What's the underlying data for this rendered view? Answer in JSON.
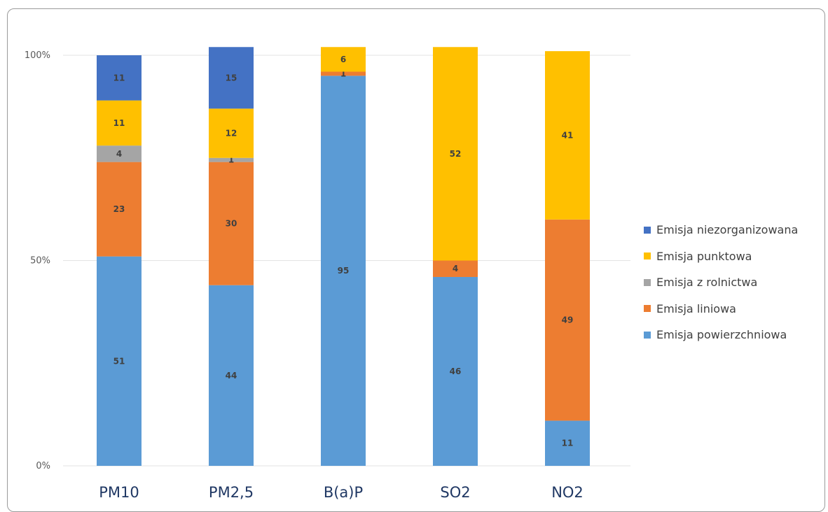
{
  "chart_data": {
    "type": "bar",
    "stacked": "percent",
    "categories": [
      "PM10",
      "PM2,5",
      "B(a)P",
      "SO2",
      "NO2"
    ],
    "y_ticks": [
      "0%",
      "50%",
      "100%"
    ],
    "ylim": [
      0,
      100
    ],
    "grid": true,
    "legend_position": "right",
    "series": [
      {
        "name": "Emisja powierzchniowa",
        "color": "#5B9BD5",
        "values": [
          51,
          44,
          95,
          46,
          11
        ],
        "labels": [
          "51",
          "44",
          "95",
          "46",
          "11"
        ]
      },
      {
        "name": "Emisja liniowa",
        "color": "#ED7D31",
        "values": [
          23,
          30,
          1,
          4,
          49
        ],
        "labels": [
          "23",
          "30",
          "1",
          "4",
          "49"
        ]
      },
      {
        "name": "Emisja z rolnictwa",
        "color": "#A5A5A5",
        "values": [
          4,
          1,
          0,
          0,
          0
        ],
        "labels": [
          "4",
          "1",
          "",
          "",
          ""
        ]
      },
      {
        "name": "Emisja punktowa",
        "color": "#FFC000",
        "values": [
          11,
          12,
          6,
          52,
          41
        ],
        "labels": [
          "11",
          "12",
          "6",
          "52",
          "41"
        ]
      },
      {
        "name": "Emisja niezorganizowana",
        "color": "#4472C4",
        "values": [
          11,
          15,
          0,
          0,
          0
        ],
        "labels": [
          "11",
          "15",
          "",
          "",
          ""
        ]
      }
    ],
    "legend_order": [
      "Emisja niezorganizowana",
      "Emisja punktowa",
      "Emisja z rolnictwa",
      "Emisja liniowa",
      "Emisja powierzchniowa"
    ]
  }
}
